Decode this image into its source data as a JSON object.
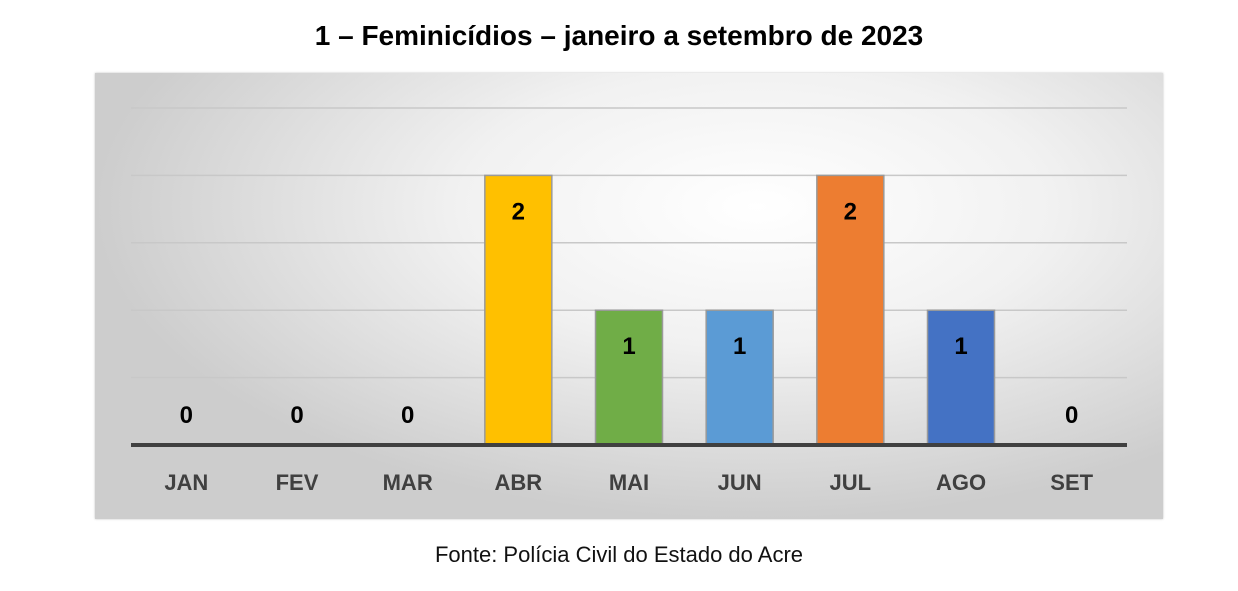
{
  "chart_data": {
    "type": "bar",
    "title": "1 – Feminicídios – janeiro a setembro de 2023",
    "categories": [
      "JAN",
      "FEV",
      "MAR",
      "ABR",
      "MAI",
      "JUN",
      "JUL",
      "AGO",
      "SET"
    ],
    "values": [
      0,
      0,
      0,
      2,
      1,
      1,
      2,
      1,
      0
    ],
    "colors": [
      "#ffc000",
      "#ffc000",
      "#ffc000",
      "#ffc000",
      "#70ad47",
      "#5b9bd5",
      "#ed7d31",
      "#4472c4",
      "#ffc000"
    ],
    "ylim": [
      0,
      2.5
    ],
    "grid": true,
    "data_labels": true
  },
  "source": "Fonte: Polícia Civil do Estado do Acre"
}
